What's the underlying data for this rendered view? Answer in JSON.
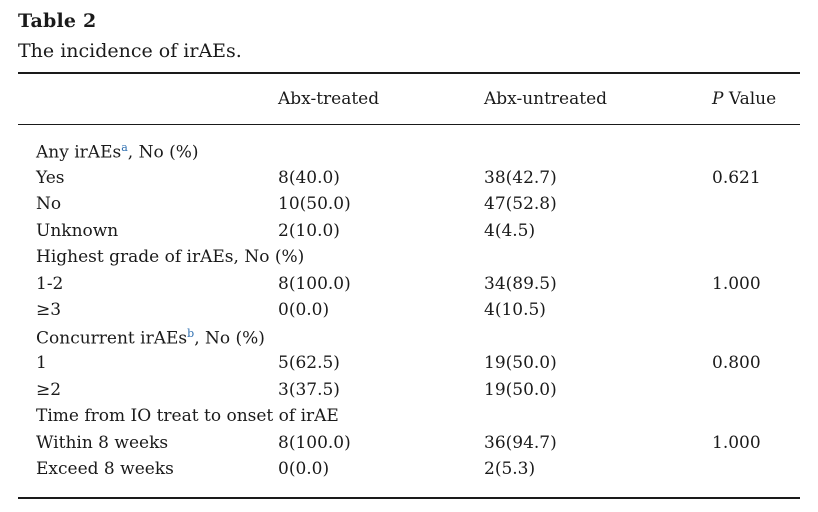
{
  "caption": {
    "label": "Table 2",
    "title": "The incidence of irAEs."
  },
  "header": {
    "col1": "Abx-treated",
    "col2": "Abx-untreated",
    "col3_italic": "P",
    "col3_rest": " Value"
  },
  "rows": [
    {
      "label": "Any irAEs",
      "sup": "a",
      "suffix": ", No (%)",
      "v1": "",
      "v2": "",
      "p": ""
    },
    {
      "label": "Yes",
      "sup": "",
      "suffix": "",
      "v1": "8(40.0)",
      "v2": "38(42.7)",
      "p": "0.621"
    },
    {
      "label": "No",
      "sup": "",
      "suffix": "",
      "v1": "10(50.0)",
      "v2": "47(52.8)",
      "p": ""
    },
    {
      "label": "Unknown",
      "sup": "",
      "suffix": "",
      "v1": "2(10.0)",
      "v2": "4(4.5)",
      "p": ""
    },
    {
      "label": "Highest grade of irAEs, No (%)",
      "sup": "",
      "suffix": "",
      "v1": "",
      "v2": "",
      "p": ""
    },
    {
      "label": "1-2",
      "sup": "",
      "suffix": "",
      "v1": "8(100.0)",
      "v2": "34(89.5)",
      "p": "1.000"
    },
    {
      "label": "≥3",
      "sup": "",
      "suffix": "",
      "v1": "0(0.0)",
      "v2": "4(10.5)",
      "p": ""
    },
    {
      "label": "Concurrent irAEs",
      "sup": "b",
      "suffix": ", No (%)",
      "v1": "",
      "v2": "",
      "p": ""
    },
    {
      "label": "1",
      "sup": "",
      "suffix": "",
      "v1": "5(62.5)",
      "v2": "19(50.0)",
      "p": "0.800"
    },
    {
      "label": "≥2",
      "sup": "",
      "suffix": "",
      "v1": "3(37.5)",
      "v2": "19(50.0)",
      "p": ""
    },
    {
      "label": "Time from IO treat to onset of irAE",
      "sup": "",
      "suffix": "",
      "v1": "",
      "v2": "",
      "p": ""
    },
    {
      "label": "Within 8 weeks",
      "sup": "",
      "suffix": "",
      "v1": "8(100.0)",
      "v2": "36(94.7)",
      "p": "1.000"
    },
    {
      "label": "Exceed 8 weeks",
      "sup": "",
      "suffix": "",
      "v1": "0(0.0)",
      "v2": "2(5.3)",
      "p": ""
    }
  ]
}
